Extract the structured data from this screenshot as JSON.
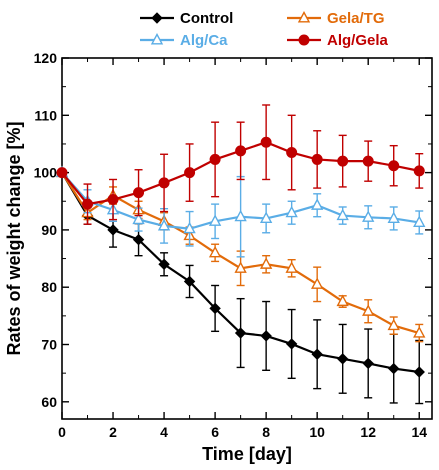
{
  "chart_data": {
    "type": "line",
    "xlabel": "Time [day]",
    "ylabel": "Rates of weight change [%]",
    "xlim": [
      0,
      14.5
    ],
    "ylim": [
      57,
      120
    ],
    "x_ticks": [
      0,
      2,
      4,
      6,
      8,
      10,
      12,
      14
    ],
    "y_ticks": [
      60,
      70,
      80,
      90,
      100,
      110,
      120
    ],
    "legend_position": "top",
    "error_bars": true,
    "series": [
      {
        "name": "Control",
        "color": "#000000",
        "marker": "diamond",
        "x": [
          0,
          1,
          2,
          3,
          4,
          5,
          6,
          7,
          8,
          9,
          10,
          11,
          12,
          13,
          14
        ],
        "y": [
          100,
          92.5,
          90.0,
          88.3,
          84.0,
          81.0,
          76.3,
          72.0,
          71.5,
          70.1,
          68.3,
          67.5,
          66.7,
          65.8,
          65.2
        ],
        "err": [
          0,
          1.5,
          3.0,
          2.8,
          2.0,
          2.8,
          4.0,
          6.0,
          6.0,
          6.0,
          6.0,
          6.0,
          6.0,
          6.0,
          5.5
        ]
      },
      {
        "name": "Gela/TG",
        "color": "#e26b0a",
        "marker": "triangle-open",
        "x": [
          0,
          1,
          2,
          3,
          4,
          5,
          6,
          7,
          8,
          9,
          10,
          11,
          12,
          13,
          14
        ],
        "y": [
          100,
          93.0,
          96.0,
          93.5,
          91.5,
          89.0,
          86.0,
          83.3,
          84.0,
          83.3,
          80.5,
          77.5,
          75.8,
          73.3,
          72.0
        ],
        "err": [
          0,
          1.2,
          1.5,
          1.5,
          1.5,
          1.5,
          1.5,
          3.0,
          1.5,
          1.5,
          3.0,
          1.0,
          2.0,
          1.5,
          1.5
        ]
      },
      {
        "name": "Alg/Ca",
        "color": "#5aade6",
        "marker": "triangle-open",
        "x": [
          0,
          1,
          2,
          3,
          4,
          5,
          6,
          7,
          8,
          9,
          10,
          11,
          12,
          13,
          14
        ],
        "y": [
          100,
          95.0,
          93.5,
          91.8,
          90.7,
          90.2,
          91.5,
          92.3,
          92.0,
          93.0,
          94.3,
          92.5,
          92.2,
          92.0,
          91.3
        ],
        "err": [
          0,
          2.0,
          2.0,
          2.0,
          3.0,
          3.0,
          3.0,
          7.0,
          2.5,
          2.0,
          2.0,
          1.5,
          2.0,
          2.0,
          2.0
        ]
      },
      {
        "name": "Alg/Gela",
        "color": "#c00000",
        "marker": "circle",
        "x": [
          0,
          1,
          2,
          3,
          4,
          5,
          6,
          7,
          8,
          9,
          10,
          11,
          12,
          13,
          14
        ],
        "y": [
          100,
          94.5,
          95.3,
          96.5,
          98.2,
          100.0,
          102.3,
          103.8,
          105.3,
          103.5,
          102.3,
          102.0,
          102.0,
          101.2,
          100.3
        ],
        "err": [
          0,
          3.5,
          3.5,
          4.0,
          5.0,
          5.0,
          6.5,
          5.0,
          6.5,
          6.5,
          5.0,
          4.5,
          3.5,
          3.5,
          3.0
        ]
      }
    ]
  }
}
